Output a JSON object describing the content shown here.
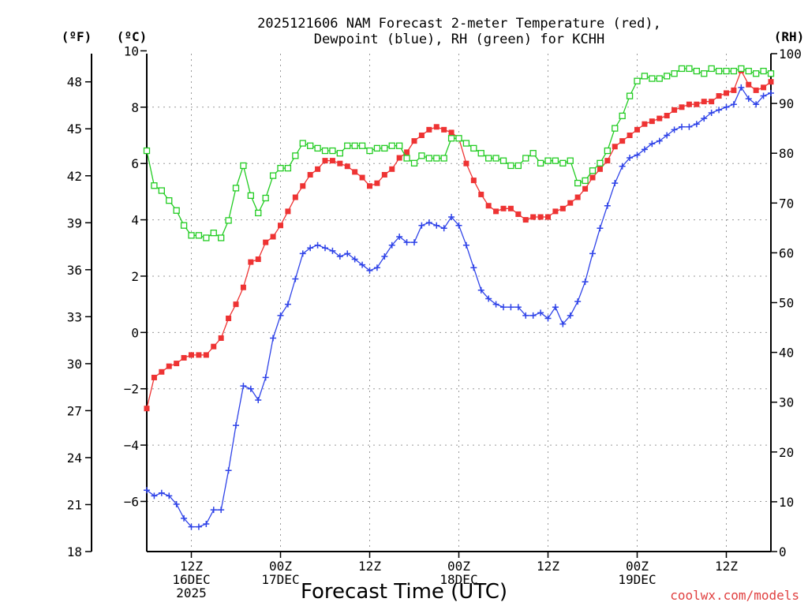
{
  "chart_data": {
    "type": "line",
    "title": [
      "2025121606 NAM Forecast 2-meter Temperature (red),",
      "Dewpoint (blue), RH (green) for KCHH"
    ],
    "xlabel": "Forecast Time (UTC)",
    "units": {
      "fahrenheit": "(ºF)",
      "celsius": "(ºC)",
      "rh": "(RH)"
    },
    "credit": "coolwx.com/models",
    "grid": true,
    "x_range": [
      0,
      84
    ],
    "x_tick_positions": [
      6,
      18,
      30,
      42,
      54,
      66,
      78
    ],
    "x_tick_labels": [
      [
        "12Z",
        "16DEC",
        "2025"
      ],
      [
        "00Z",
        "17DEC",
        ""
      ],
      [
        "12Z",
        "",
        ""
      ],
      [
        "00Z",
        "18DEC",
        ""
      ],
      [
        "12Z",
        "",
        ""
      ],
      [
        "00Z",
        "19DEC",
        ""
      ],
      [
        "12Z",
        "",
        ""
      ]
    ],
    "y_celsius": {
      "range": [
        -7.78,
        9.9
      ],
      "ticks": [
        -6,
        -4,
        -2,
        0,
        2,
        4,
        6,
        8,
        10
      ]
    },
    "y_fahrenheit": {
      "range": [
        18,
        49.8
      ],
      "ticks": [
        18,
        21,
        24,
        27,
        30,
        33,
        36,
        39,
        42,
        45,
        48
      ]
    },
    "y_rh": {
      "range": [
        0,
        100
      ],
      "ticks": [
        0,
        10,
        20,
        30,
        40,
        50,
        60,
        70,
        80,
        90,
        100
      ]
    },
    "series": [
      {
        "name": "Temperature",
        "axis": "celsius",
        "color": "#ee3333",
        "marker": "filled-square",
        "values": [
          -2.7,
          -1.6,
          -1.4,
          -1.2,
          -1.1,
          -0.9,
          -0.8,
          -0.8,
          -0.8,
          -0.5,
          -0.2,
          0.5,
          1.0,
          1.6,
          2.5,
          2.6,
          3.2,
          3.4,
          3.8,
          4.3,
          4.8,
          5.2,
          5.6,
          5.8,
          6.1,
          6.1,
          6.0,
          5.9,
          5.7,
          5.5,
          5.2,
          5.3,
          5.6,
          5.8,
          6.2,
          6.4,
          6.8,
          7.0,
          7.2,
          7.3,
          7.2,
          7.1,
          6.9,
          6.0,
          5.4,
          4.9,
          4.5,
          4.3,
          4.4,
          4.4,
          4.2,
          4.0,
          4.1,
          4.1,
          4.1,
          4.3,
          4.4,
          4.6,
          4.8,
          5.1,
          5.5,
          5.8,
          6.1,
          6.6,
          6.8,
          7.0,
          7.2,
          7.4,
          7.5,
          7.6,
          7.7,
          7.9,
          8.0,
          8.1,
          8.1,
          8.2,
          8.2,
          8.4,
          8.5,
          8.6,
          9.3,
          8.8,
          8.6,
          8.7,
          8.9
        ]
      },
      {
        "name": "Dewpoint",
        "axis": "celsius",
        "color": "#2f43e8",
        "marker": "plus",
        "values": [
          -5.6,
          -5.8,
          -5.7,
          -5.8,
          -6.1,
          -6.6,
          -6.9,
          -6.9,
          -6.8,
          -6.3,
          -6.3,
          -4.9,
          -3.3,
          -1.9,
          -2.0,
          -2.4,
          -1.6,
          -0.2,
          0.6,
          1.0,
          1.9,
          2.8,
          3.0,
          3.1,
          3.0,
          2.9,
          2.7,
          2.8,
          2.6,
          2.4,
          2.2,
          2.3,
          2.7,
          3.1,
          3.4,
          3.2,
          3.2,
          3.8,
          3.9,
          3.8,
          3.7,
          4.1,
          3.8,
          3.1,
          2.3,
          1.5,
          1.2,
          1.0,
          0.9,
          0.9,
          0.9,
          0.6,
          0.6,
          0.7,
          0.5,
          0.9,
          0.3,
          0.6,
          1.1,
          1.8,
          2.8,
          3.7,
          4.5,
          5.3,
          5.9,
          6.2,
          6.3,
          6.5,
          6.7,
          6.8,
          7.0,
          7.2,
          7.3,
          7.3,
          7.4,
          7.6,
          7.8,
          7.9,
          8.0,
          8.1,
          8.7,
          8.3,
          8.1,
          8.4,
          8.5
        ]
      },
      {
        "name": "RH",
        "axis": "rh",
        "color": "#22cc22",
        "marker": "open-square",
        "values": [
          80.5,
          73.5,
          72.5,
          70.5,
          68.5,
          65.5,
          63.5,
          63.5,
          63.0,
          64.0,
          63.0,
          66.5,
          73.0,
          77.5,
          71.5,
          68.0,
          71.0,
          75.5,
          77.0,
          77.0,
          79.5,
          82.0,
          81.5,
          81.0,
          80.5,
          80.5,
          80.0,
          81.5,
          81.5,
          81.5,
          80.5,
          81.0,
          81.0,
          81.5,
          81.5,
          79.0,
          78.0,
          79.5,
          79.0,
          79.0,
          79.0,
          83.0,
          83.0,
          82.0,
          81.0,
          80.0,
          79.0,
          79.0,
          78.5,
          77.5,
          77.5,
          79.0,
          80.0,
          78.0,
          78.5,
          78.5,
          78.0,
          78.5,
          74.0,
          74.5,
          76.5,
          78.0,
          80.5,
          85.0,
          87.5,
          91.5,
          94.5,
          95.5,
          95.0,
          95.0,
          95.5,
          96.0,
          97.0,
          97.0,
          96.5,
          96.0,
          97.0,
          96.5,
          96.5,
          96.5,
          97.0,
          96.5,
          96.0,
          96.5,
          96.0
        ]
      }
    ]
  }
}
